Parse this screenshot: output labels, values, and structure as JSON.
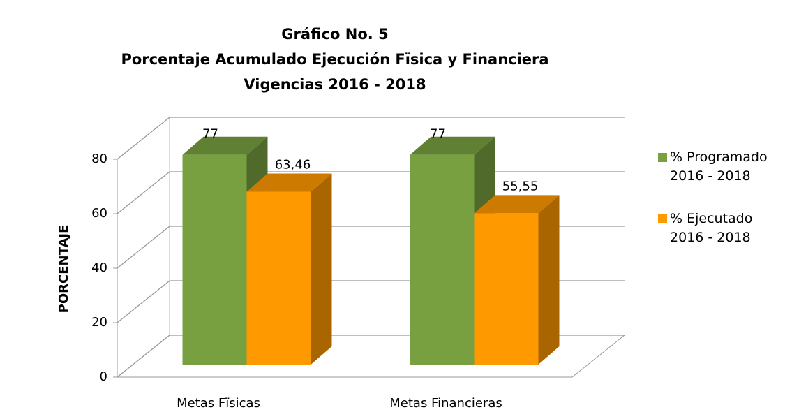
{
  "chart_data": {
    "type": "bar3d",
    "title": [
      "Gráfico No. 5",
      "Porcentaje Acumulado Ejecución Fïsica y Financiera",
      "Vigencias 2016 - 2018"
    ],
    "y_label": "PORCENTAJE",
    "categories": [
      "Metas Fïsicas",
      "Metas Financieras"
    ],
    "series": [
      {
        "name": "% Programado 2016 - 2018",
        "color": "#78a040",
        "values": [
          77,
          77
        ]
      },
      {
        "name": "% Ejecutado 2016 - 2018",
        "color": "#ff9900",
        "values": [
          63.46,
          55.55
        ],
        "value_labels": [
          "63,46",
          "55,55"
        ]
      }
    ],
    "ylim": [
      0,
      80
    ],
    "yticks": [
      0,
      20,
      40,
      60,
      80
    ],
    "grid": true,
    "legend": "right"
  }
}
